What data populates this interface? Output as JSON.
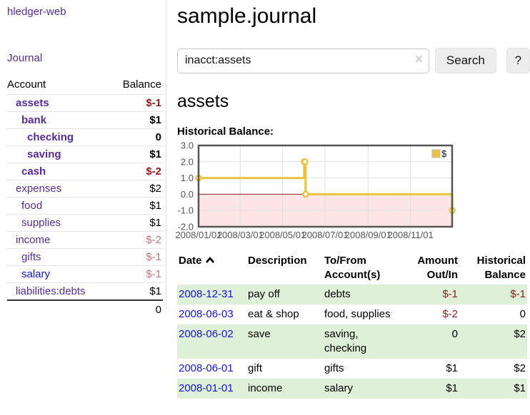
{
  "app": {
    "brand": "hledger-web",
    "nav_journal": "Journal"
  },
  "sidebar": {
    "col_account": "Account",
    "col_balance": "Balance",
    "accounts": [
      {
        "name": "assets",
        "balance": "$-1"
      },
      {
        "name": "bank",
        "balance": "$1"
      },
      {
        "name": "checking",
        "balance": "0"
      },
      {
        "name": "saving",
        "balance": "$1"
      },
      {
        "name": "cash",
        "balance": "$-2"
      },
      {
        "name": "expenses",
        "balance": "$2"
      },
      {
        "name": "food",
        "balance": "$1"
      },
      {
        "name": "supplies",
        "balance": "$1"
      },
      {
        "name": "income",
        "balance": "$-2"
      },
      {
        "name": "gifts",
        "balance": "$-1"
      },
      {
        "name": "salary",
        "balance": "$-1"
      },
      {
        "name": "liabilities:debts",
        "balance": "$1"
      }
    ],
    "total": "0"
  },
  "main": {
    "title": "sample.journal",
    "search": {
      "value": "inacct:assets",
      "clear_label": "×",
      "button_label": "Search",
      "help_label": "?"
    },
    "account_heading": "assets",
    "chart_label": "Historical Balance:"
  },
  "chart_data": {
    "type": "line",
    "title": "Historical Balance:",
    "step": true,
    "x_range": [
      "2008-01-01",
      "2008-12-31"
    ],
    "ylim": [
      -2,
      3
    ],
    "y_ticks": [
      3.0,
      2.0,
      1.0,
      0.0,
      -1.0,
      -2.0
    ],
    "x_ticks": [
      {
        "date": "2008-01-01",
        "label": "2008/01/01"
      },
      {
        "date": "2008-03-01",
        "label": "2008/03/01"
      },
      {
        "date": "2008-05-01",
        "label": "2008/05/01"
      },
      {
        "date": "2008-07-01",
        "label": "2008/07/01"
      },
      {
        "date": "2008-09-01",
        "label": "2008/09/01"
      },
      {
        "date": "2008-11-01",
        "label": "2008/11/01"
      }
    ],
    "series": [
      {
        "name": "$",
        "color": "#edc240",
        "points": [
          [
            "2008-01-01",
            1
          ],
          [
            "2008-06-01",
            2
          ],
          [
            "2008-06-02",
            2
          ],
          [
            "2008-06-03",
            0
          ],
          [
            "2008-12-31",
            -1
          ]
        ]
      }
    ],
    "legend_position": "top-right",
    "grid": true,
    "colors": {
      "grid": "#e0e0e0",
      "border": "#545454",
      "zero_line": "#8b1a1a",
      "negative_fill": "#fde5e5",
      "tick_text": "#545454"
    }
  },
  "register": {
    "headers": {
      "date": "Date",
      "description": "Description",
      "tofrom": "To/From Account(s)",
      "amount": "Amount Out/In",
      "balance": "Historical Balance"
    },
    "rows": [
      {
        "date": "2008-12-31",
        "description": "pay off",
        "accounts": "debts",
        "amount": "$-1",
        "balance": "$-1"
      },
      {
        "date": "2008-06-03",
        "description": "eat & shop",
        "accounts": "food, supplies",
        "amount": "$-2",
        "balance": "0"
      },
      {
        "date": "2008-06-02",
        "description": "save",
        "accounts": "saving, checking",
        "amount": "0",
        "balance": "$2"
      },
      {
        "date": "2008-06-01",
        "description": "gift",
        "accounts": "gifts",
        "amount": "$1",
        "balance": "$2"
      },
      {
        "date": "2008-01-01",
        "description": "income",
        "accounts": "salary",
        "amount": "$1",
        "balance": "$1"
      }
    ]
  }
}
